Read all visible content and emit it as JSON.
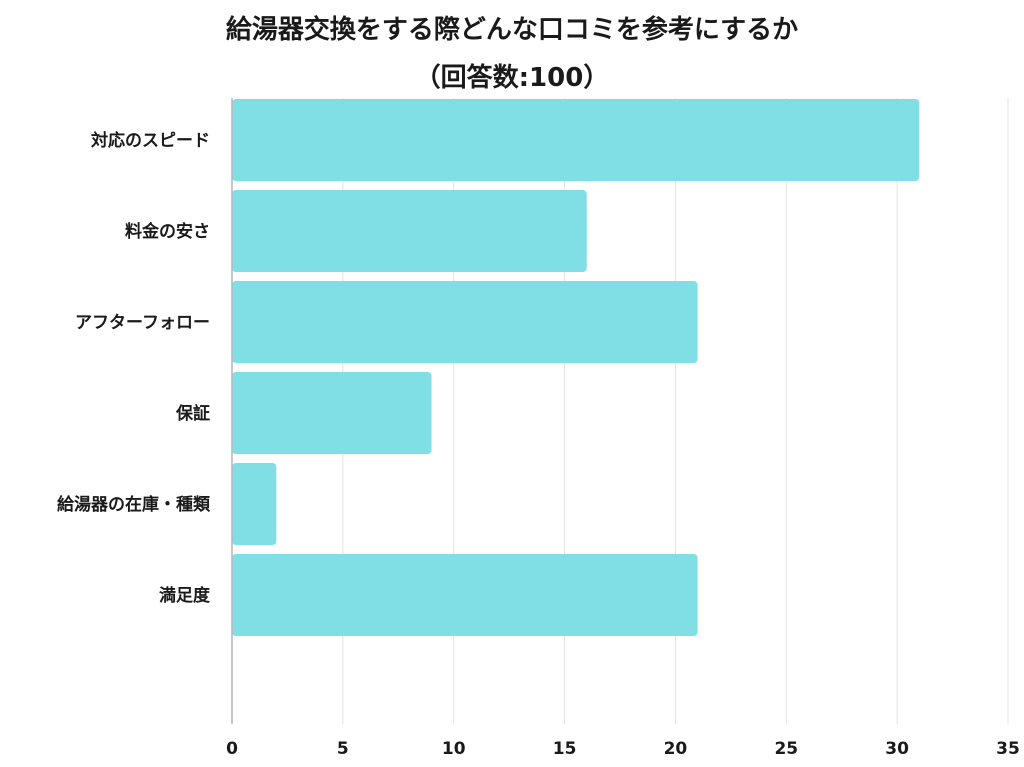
{
  "chart_data": {
    "type": "bar",
    "orientation": "horizontal",
    "title": "給湯器交換をする際どんな口コミを参考にするか",
    "subtitle": "（回答数:100）",
    "categories": [
      "対応のスピード",
      "料金の安さ",
      "アフターフォロー",
      "保証",
      "給湯器の在庫・種類",
      "満足度"
    ],
    "values": [
      31,
      16,
      21,
      9,
      2,
      21
    ],
    "xlim": [
      0,
      35
    ],
    "xticks": [
      0,
      5,
      10,
      15,
      20,
      25,
      30,
      35
    ],
    "grid": true,
    "bar_color": "#7fdfe4",
    "xlabel": "",
    "ylabel": ""
  }
}
